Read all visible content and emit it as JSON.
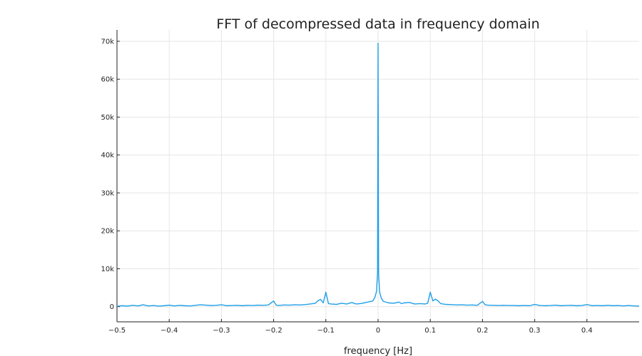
{
  "chart_data": {
    "type": "line",
    "title": "FFT of decompressed data in frequency domain",
    "xlabel": "frequency [Hz]",
    "ylabel": "",
    "xlim": [
      -0.5,
      0.5
    ],
    "ylim": [
      -4000,
      73000
    ],
    "grid": true,
    "legend": "none",
    "x_ticks": [
      -0.5,
      -0.4,
      -0.3,
      -0.2,
      -0.1,
      0,
      0.1,
      0.2,
      0.3,
      0.4
    ],
    "x_tick_labels": [
      "−0.5",
      "−0.4",
      "−0.3",
      "−0.2",
      "−0.1",
      "0",
      "0.1",
      "0.2",
      "0.3",
      "0.4"
    ],
    "y_ticks": [
      0,
      10000,
      20000,
      30000,
      40000,
      50000,
      60000,
      70000
    ],
    "y_tick_labels": [
      "0",
      "10k",
      "20k",
      "30k",
      "40k",
      "50k",
      "60k",
      "70k"
    ],
    "series": [
      {
        "color": "#1f9fe8",
        "points": [
          [
            -0.5,
            100
          ],
          [
            -0.49,
            250
          ],
          [
            -0.48,
            150
          ],
          [
            -0.47,
            350
          ],
          [
            -0.46,
            200
          ],
          [
            -0.45,
            500
          ],
          [
            -0.44,
            200
          ],
          [
            -0.43,
            300
          ],
          [
            -0.42,
            150
          ],
          [
            -0.41,
            250
          ],
          [
            -0.4,
            400
          ],
          [
            -0.39,
            200
          ],
          [
            -0.38,
            350
          ],
          [
            -0.37,
            250
          ],
          [
            -0.36,
            200
          ],
          [
            -0.35,
            350
          ],
          [
            -0.34,
            500
          ],
          [
            -0.33,
            400
          ],
          [
            -0.32,
            300
          ],
          [
            -0.31,
            350
          ],
          [
            -0.3,
            500
          ],
          [
            -0.29,
            250
          ],
          [
            -0.28,
            300
          ],
          [
            -0.27,
            350
          ],
          [
            -0.26,
            250
          ],
          [
            -0.25,
            350
          ],
          [
            -0.24,
            300
          ],
          [
            -0.23,
            400
          ],
          [
            -0.22,
            350
          ],
          [
            -0.21,
            450
          ],
          [
            -0.2,
            1500
          ],
          [
            -0.195,
            400
          ],
          [
            -0.19,
            300
          ],
          [
            -0.18,
            450
          ],
          [
            -0.17,
            400
          ],
          [
            -0.16,
            500
          ],
          [
            -0.15,
            450
          ],
          [
            -0.14,
            550
          ],
          [
            -0.13,
            700
          ],
          [
            -0.12,
            900
          ],
          [
            -0.115,
            1600
          ],
          [
            -0.11,
            1900
          ],
          [
            -0.105,
            1000
          ],
          [
            -0.1,
            3800
          ],
          [
            -0.095,
            800
          ],
          [
            -0.09,
            700
          ],
          [
            -0.08,
            600
          ],
          [
            -0.07,
            900
          ],
          [
            -0.06,
            700
          ],
          [
            -0.05,
            1100
          ],
          [
            -0.045,
            800
          ],
          [
            -0.04,
            700
          ],
          [
            -0.03,
            900
          ],
          [
            -0.02,
            1200
          ],
          [
            -0.01,
            1500
          ],
          [
            -0.006,
            2500
          ],
          [
            -0.003,
            4000
          ],
          [
            -0.001,
            9000
          ],
          [
            0,
            69500
          ],
          [
            0.001,
            9000
          ],
          [
            0.003,
            3800
          ],
          [
            0.006,
            2300
          ],
          [
            0.01,
            1400
          ],
          [
            0.02,
            1000
          ],
          [
            0.03,
            900
          ],
          [
            0.04,
            1200
          ],
          [
            0.045,
            800
          ],
          [
            0.05,
            1000
          ],
          [
            0.06,
            1100
          ],
          [
            0.07,
            700
          ],
          [
            0.08,
            800
          ],
          [
            0.09,
            700
          ],
          [
            0.095,
            900
          ],
          [
            0.1,
            3800
          ],
          [
            0.105,
            1500
          ],
          [
            0.11,
            2000
          ],
          [
            0.115,
            1500
          ],
          [
            0.12,
            800
          ],
          [
            0.13,
            600
          ],
          [
            0.14,
            550
          ],
          [
            0.15,
            450
          ],
          [
            0.16,
            500
          ],
          [
            0.17,
            400
          ],
          [
            0.18,
            450
          ],
          [
            0.19,
            350
          ],
          [
            0.2,
            1400
          ],
          [
            0.205,
            500
          ],
          [
            0.21,
            400
          ],
          [
            0.22,
            350
          ],
          [
            0.23,
            300
          ],
          [
            0.24,
            350
          ],
          [
            0.25,
            300
          ],
          [
            0.26,
            300
          ],
          [
            0.27,
            250
          ],
          [
            0.28,
            300
          ],
          [
            0.29,
            250
          ],
          [
            0.3,
            600
          ],
          [
            0.31,
            300
          ],
          [
            0.32,
            250
          ],
          [
            0.33,
            300
          ],
          [
            0.34,
            400
          ],
          [
            0.35,
            250
          ],
          [
            0.36,
            300
          ],
          [
            0.37,
            350
          ],
          [
            0.38,
            250
          ],
          [
            0.39,
            300
          ],
          [
            0.4,
            550
          ],
          [
            0.41,
            250
          ],
          [
            0.42,
            300
          ],
          [
            0.43,
            250
          ],
          [
            0.44,
            350
          ],
          [
            0.45,
            250
          ],
          [
            0.46,
            300
          ],
          [
            0.47,
            200
          ],
          [
            0.48,
            300
          ],
          [
            0.49,
            200
          ],
          [
            0.5,
            150
          ]
        ]
      }
    ]
  }
}
